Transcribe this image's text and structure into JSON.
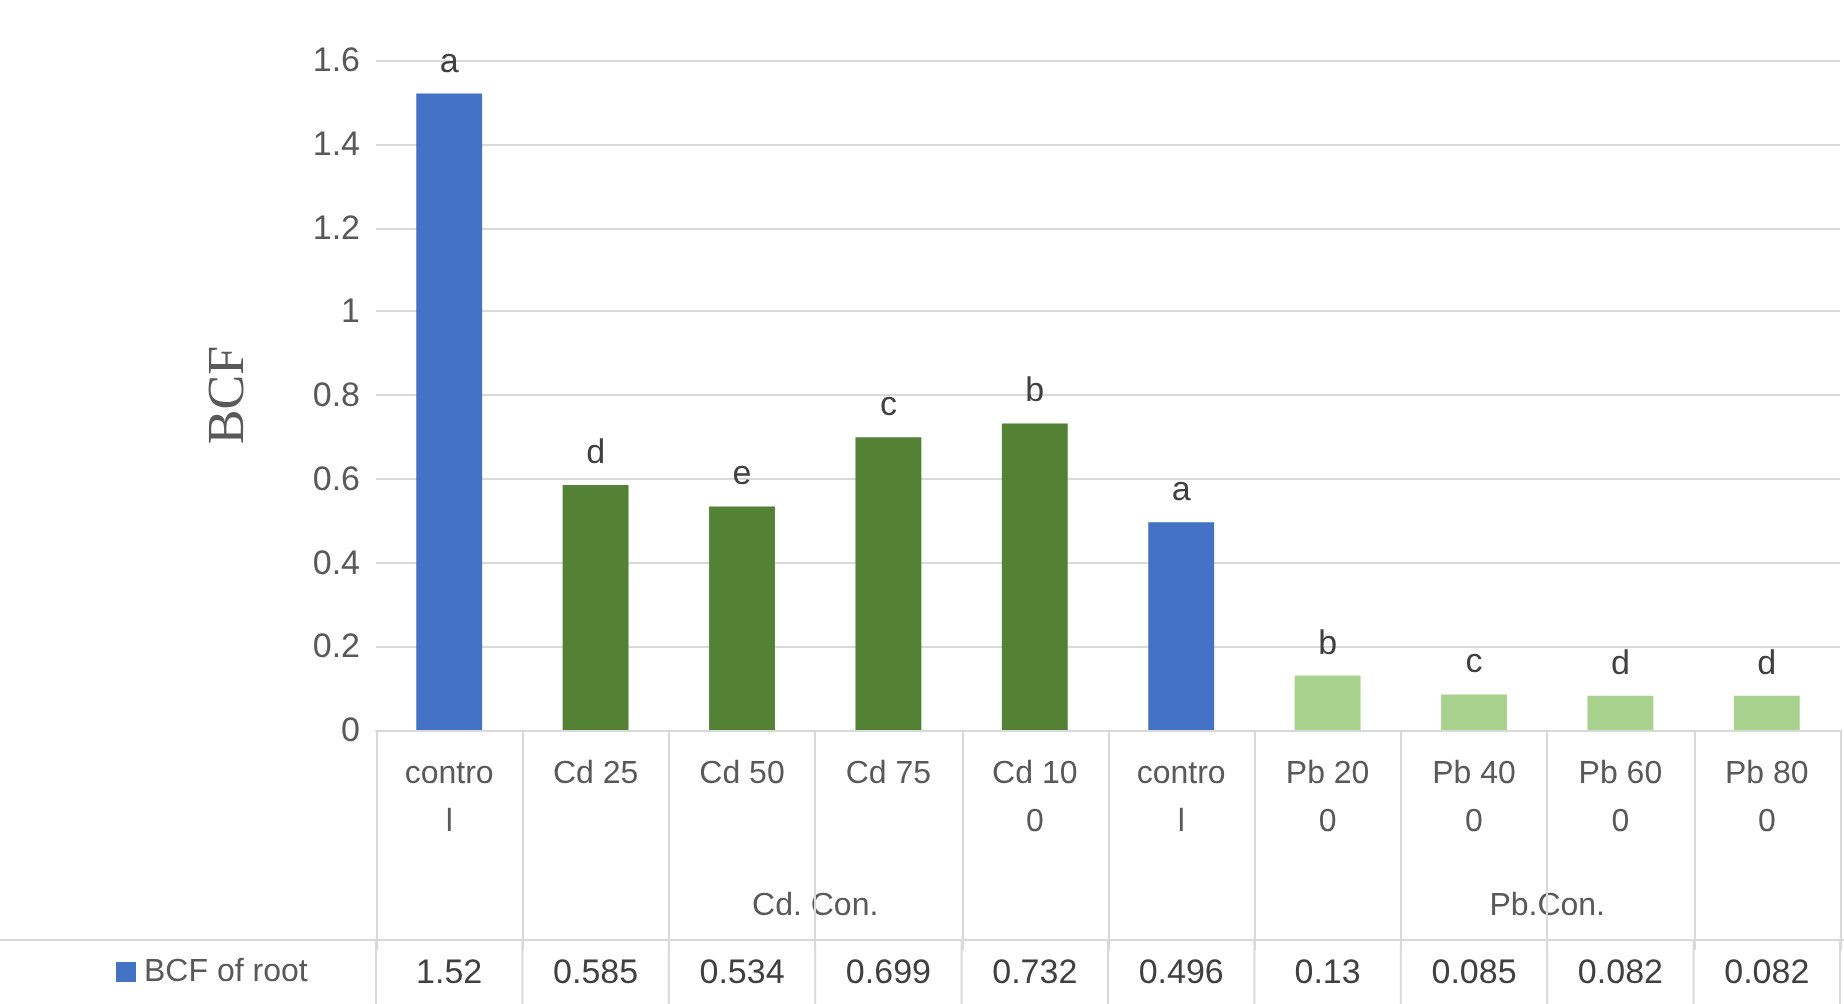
{
  "chart_data": {
    "type": "bar",
    "ylabel": "BCF",
    "categories": [
      "control",
      "Cd 25",
      "Cd 50",
      "Cd 75",
      "Cd 100",
      "control",
      "Pb 200",
      "Pb 400",
      "Pb 600",
      "Pb 800"
    ],
    "series": [
      {
        "name": "BCF of root",
        "color": "#4472c4",
        "colors": [
          "#4472c4",
          "#548235",
          "#548235",
          "#548235",
          "#548235",
          "#4472c4",
          "#a9d18e",
          "#a9d18e",
          "#a9d18e",
          "#a9d18e"
        ],
        "values": [
          1.52,
          0.585,
          0.534,
          0.699,
          0.732,
          0.496,
          0.13,
          0.085,
          0.082,
          0.082
        ]
      }
    ],
    "annotations": [
      "a",
      "d",
      "e",
      "c",
      "b",
      "a",
      "b",
      "c",
      "d",
      "d",
      "Cd. Con.",
      "Pb.Con."
    ],
    "ylim": [
      0,
      1.6
    ],
    "yticks": [
      0,
      0.2,
      0.4,
      0.6,
      0.8,
      1,
      1.2,
      1.4,
      1.6
    ],
    "grid": "y",
    "data_labels": true,
    "legend": "bottom"
  }
}
